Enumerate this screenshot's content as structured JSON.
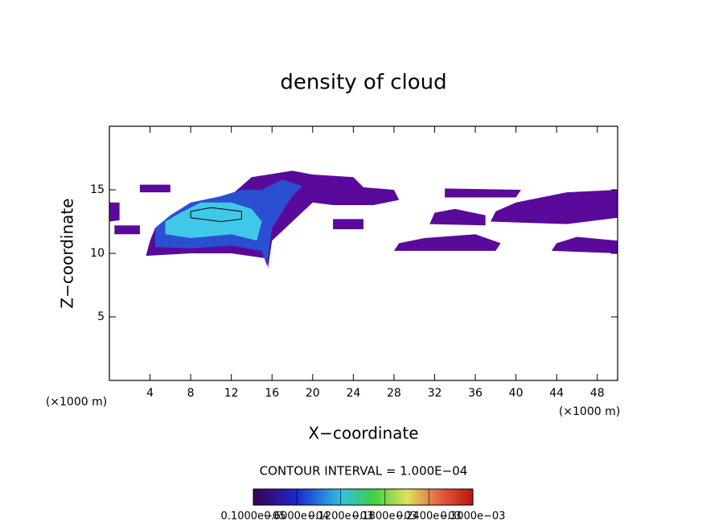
{
  "chart_data": {
    "type": "contour",
    "title": "density of cloud",
    "xlabel": "X−coordinate",
    "ylabel": "Z−coordinate",
    "x_unit_left": "(×1000 m)",
    "x_unit_right": "(×1000 m)",
    "xlim": [
      0,
      50
    ],
    "ylim": [
      0,
      20
    ],
    "xticks": [
      4,
      8,
      12,
      16,
      20,
      24,
      28,
      32,
      36,
      40,
      44,
      48
    ],
    "yticks": [
      5,
      10,
      15
    ],
    "contour_note": "CONTOUR INTERVAL = 1.000E−04",
    "colorbar_ticks": [
      {
        "value": 1e-06,
        "label": "0.1000e−05"
      },
      {
        "value": 6e-05,
        "label": "0.6000e−04"
      },
      {
        "value": 0.00012,
        "label": "0.1200e−03"
      },
      {
        "value": 0.00018,
        "label": "0.1800e−03"
      },
      {
        "value": 0.00024,
        "label": "0.2400e−03"
      },
      {
        "value": 0.0003,
        "label": "0.3000e−03"
      }
    ],
    "areas": [
      {
        "color": "#5a0a9a",
        "x": [
          3.6,
          8,
          12,
          15.5,
          15.6,
          16,
          18,
          20,
          22,
          26,
          28.5,
          28,
          25,
          24,
          20,
          18,
          14,
          12,
          10,
          8,
          6,
          4.5,
          4
        ],
        "y": [
          9.8,
          10,
          10,
          9.6,
          8.8,
          11,
          12.5,
          14,
          13.8,
          13.8,
          14.2,
          15,
          15.2,
          16,
          16.2,
          16.5,
          16,
          14.6,
          14,
          13.5,
          12.5,
          12,
          11
        ]
      },
      {
        "color": "#2a4fd0",
        "x": [
          4.5,
          8,
          12,
          15,
          15.5,
          16,
          18,
          19,
          17,
          15,
          13,
          11,
          8,
          6,
          4.5
        ],
        "y": [
          10.5,
          10.4,
          10.6,
          10.2,
          9,
          12,
          14.5,
          15.3,
          15.8,
          15,
          15,
          14.5,
          14,
          13,
          12
        ]
      },
      {
        "color": "#40c8e8",
        "x": [
          5.5,
          8,
          12,
          14.5,
          15,
          14,
          12,
          9,
          7,
          5.5
        ],
        "y": [
          11.5,
          11.2,
          11.5,
          11,
          12.5,
          13.5,
          14,
          14,
          13.2,
          12.5
        ]
      },
      {
        "color": "#5a0a9a",
        "x": [
          0.5,
          3,
          3,
          0.5
        ],
        "y": [
          11.5,
          11.5,
          12.2,
          12.2
        ]
      },
      {
        "color": "#5a0a9a",
        "x": [
          3,
          6,
          6,
          3
        ],
        "y": [
          14.8,
          14.8,
          15.4,
          15.4
        ]
      },
      {
        "color": "#5a0a9a",
        "x": [
          0,
          1,
          1,
          0
        ],
        "y": [
          12.5,
          12.6,
          14,
          14
        ]
      },
      {
        "color": "#5a0a9a",
        "x": [
          22,
          25,
          25,
          22
        ],
        "y": [
          11.9,
          11.9,
          12.7,
          12.7
        ]
      },
      {
        "color": "#5a0a9a",
        "x": [
          28,
          38,
          38.5,
          36,
          31,
          28.5
        ],
        "y": [
          10.2,
          10.2,
          10.8,
          11.5,
          11.2,
          10.8
        ]
      },
      {
        "color": "#5a0a9a",
        "x": [
          31.5,
          37,
          37,
          34,
          32
        ],
        "y": [
          12.3,
          12.2,
          13,
          13.5,
          13.2
        ]
      },
      {
        "color": "#5a0a9a",
        "x": [
          33,
          40,
          40.5,
          33
        ],
        "y": [
          14.4,
          14.4,
          15,
          15.1
        ]
      },
      {
        "color": "#5a0a9a",
        "x": [
          37.5,
          45,
          50,
          50,
          45,
          40,
          38
        ],
        "y": [
          12.5,
          12.3,
          12.8,
          15,
          14.8,
          14,
          13.3
        ]
      },
      {
        "color": "#5a0a9a",
        "x": [
          43.5,
          50,
          50,
          46,
          44
        ],
        "y": [
          10.2,
          10,
          11,
          11.3,
          10.8
        ]
      }
    ],
    "contours": [
      {
        "color": "#000000",
        "x": [
          8,
          11,
          13,
          13,
          10,
          8
        ],
        "y": [
          12.8,
          12.5,
          12.7,
          13.3,
          13.6,
          13.3
        ]
      }
    ]
  }
}
